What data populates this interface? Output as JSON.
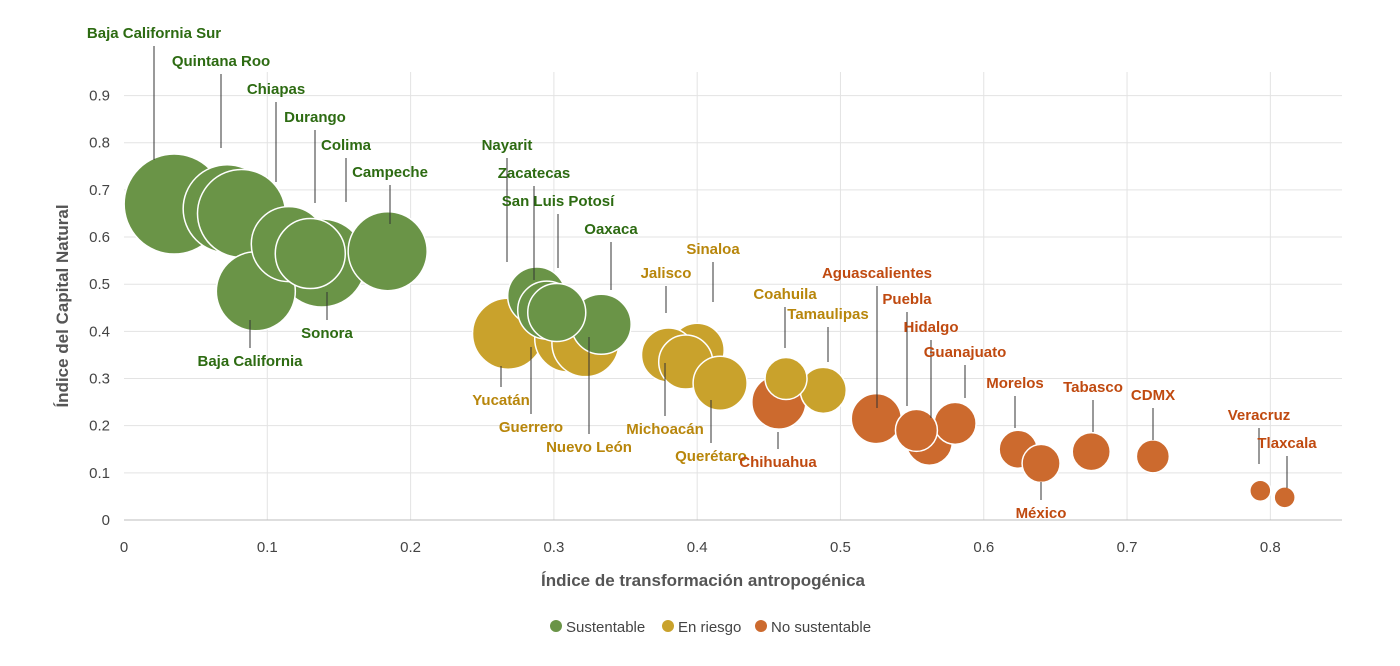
{
  "chart_data": {
    "type": "scatter",
    "subtype": "bubble",
    "title": "",
    "xlabel": "Índice de transformación antropogénica",
    "ylabel": "Índice del Capital Natural",
    "xlim": [
      0,
      0.85
    ],
    "ylim": [
      0,
      0.95
    ],
    "x_ticks": [
      "0",
      "0.1",
      "0.2",
      "0.3",
      "0.4",
      "0.5",
      "0.6",
      "0.7",
      "0.8"
    ],
    "y_ticks": [
      "0",
      "0.1",
      "0.2",
      "0.3",
      "0.4",
      "0.5",
      "0.6",
      "0.7",
      "0.8",
      "0.9"
    ],
    "grid": true,
    "legend_position": "bottom",
    "colors": {
      "Sustentable": "#6a9447",
      "En riesgo": "#c9a22c",
      "No sustentable": "#cc6a2e"
    },
    "label_colors": {
      "Sustentable": "#2d6b12",
      "En riesgo": "#b8860b",
      "No sustentable": "#c04a10"
    },
    "series": [
      {
        "name": "Sustentable",
        "points": [
          {
            "label": "Baja California Sur",
            "x": 0.035,
            "y": 0.67,
            "size": 1.0
          },
          {
            "label": "Quintana Roo",
            "x": 0.072,
            "y": 0.66,
            "size": 0.88
          },
          {
            "label": "Chiapas",
            "x": 0.082,
            "y": 0.65,
            "size": 0.88
          },
          {
            "label": "Durango",
            "x": 0.115,
            "y": 0.585,
            "size": 0.75
          },
          {
            "label": "Colima",
            "x": 0.13,
            "y": 0.565,
            "size": 0.7
          },
          {
            "label": "Campeche",
            "x": 0.184,
            "y": 0.57,
            "size": 0.79
          },
          {
            "label": "Sonora",
            "x": 0.138,
            "y": 0.545,
            "size": 0.88
          },
          {
            "label": "Baja California",
            "x": 0.092,
            "y": 0.485,
            "size": 0.79
          },
          {
            "label": "Nayarit",
            "x": 0.288,
            "y": 0.475,
            "size": 0.58
          },
          {
            "label": "Zacatecas",
            "x": 0.295,
            "y": 0.445,
            "size": 0.58
          },
          {
            "label": "San Luis Potosí",
            "x": 0.302,
            "y": 0.44,
            "size": 0.58
          },
          {
            "label": "Oaxaca",
            "x": 0.333,
            "y": 0.415,
            "size": 0.6
          }
        ]
      },
      {
        "name": "En riesgo",
        "points": [
          {
            "label": "Yucatán",
            "x": 0.268,
            "y": 0.395,
            "size": 0.71
          },
          {
            "label": "Guerrero",
            "x": 0.31,
            "y": 0.385,
            "size": 0.67
          },
          {
            "label": "Nuevo León",
            "x": 0.322,
            "y": 0.375,
            "size": 0.67
          },
          {
            "label": "Sinaloa",
            "x": 0.4,
            "y": 0.36,
            "size": 0.54
          },
          {
            "label": "Jalisco",
            "x": 0.38,
            "y": 0.35,
            "size": 0.54
          },
          {
            "label": "Michoacán",
            "x": 0.392,
            "y": 0.335,
            "size": 0.54
          },
          {
            "label": "Querétaro",
            "x": 0.416,
            "y": 0.29,
            "size": 0.54
          },
          {
            "label": "Coahuila",
            "x": 0.462,
            "y": 0.3,
            "size": 0.42
          },
          {
            "label": "Tamaulipas",
            "x": 0.488,
            "y": 0.275,
            "size": 0.46
          }
        ]
      },
      {
        "name": "No sustentable",
        "points": [
          {
            "label": "Chihuahua",
            "x": 0.457,
            "y": 0.25,
            "size": 0.54
          },
          {
            "label": "Aguascalientes",
            "x": 0.525,
            "y": 0.215,
            "size": 0.5
          },
          {
            "label": "Guanajuato",
            "x": 0.58,
            "y": 0.205,
            "size": 0.42
          },
          {
            "label": "Puebla",
            "x": 0.553,
            "y": 0.19,
            "size": 0.42
          },
          {
            "label": "Hidalgo",
            "x": 0.562,
            "y": 0.165,
            "size": 0.46
          },
          {
            "label": "Morelos",
            "x": 0.624,
            "y": 0.15,
            "size": 0.38
          },
          {
            "label": "Tabasco",
            "x": 0.675,
            "y": 0.145,
            "size": 0.38
          },
          {
            "label": "México",
            "x": 0.64,
            "y": 0.12,
            "size": 0.38
          },
          {
            "label": "CDMX",
            "x": 0.718,
            "y": 0.135,
            "size": 0.33
          },
          {
            "label": "Veracruz",
            "x": 0.793,
            "y": 0.062,
            "size": 0.21
          },
          {
            "label": "Tlaxcala",
            "x": 0.81,
            "y": 0.048,
            "size": 0.21
          }
        ]
      }
    ]
  }
}
